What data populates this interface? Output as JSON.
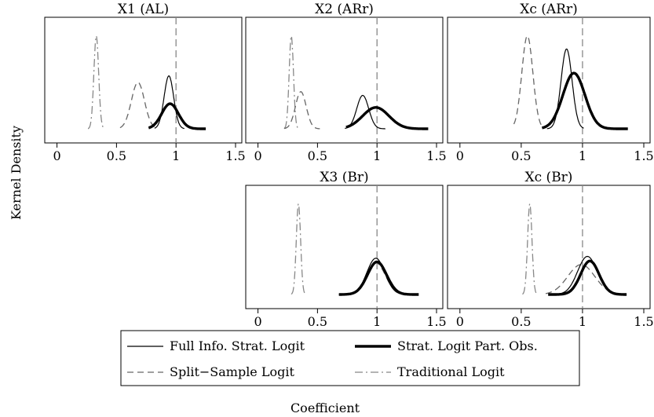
{
  "chart_data": {
    "type": "line",
    "ylabel": "Kernel Density",
    "xlabel": "Coefficient",
    "xlim": [
      -0.05,
      1.5
    ],
    "x_ticks": [
      {
        "value": 0,
        "label": "0"
      },
      {
        "value": 0.5,
        "label": "0.5"
      },
      {
        "value": 1,
        "label": "1"
      },
      {
        "value": 1.5,
        "label": "1.5"
      }
    ],
    "reference_line_x": 1,
    "grid": false,
    "legend_position": "bottom-center",
    "legend": [
      {
        "key": "full",
        "label": "Full Info. Strat. Logit",
        "style": "solid",
        "color": "#000000",
        "width": 1.2
      },
      {
        "key": "strat",
        "label": "Strat. Logit Part. Obs.",
        "style": "solid",
        "color": "#000000",
        "width": 3.4
      },
      {
        "key": "split",
        "label": "Split−Sample Logit",
        "style": "dashed",
        "color": "#666666",
        "width": 1.3
      },
      {
        "key": "trad",
        "label": "Traditional Logit",
        "style": "dashdot",
        "color": "#888888",
        "width": 1.3
      }
    ],
    "panels": [
      {
        "id": "x1-al",
        "title": "X1 (AL)",
        "ylim": [
          0,
          1.1
        ],
        "series": [
          {
            "key": "trad",
            "mean": 0.33,
            "sd": 0.02,
            "height": 1.0,
            "range": [
              0.26,
              0.4
            ]
          },
          {
            "key": "split",
            "mean": 0.68,
            "sd": 0.055,
            "height": 0.5,
            "range": [
              0.53,
              0.84
            ]
          },
          {
            "key": "full",
            "mean": 0.94,
            "sd": 0.04,
            "height": 0.57,
            "range": [
              0.82,
              1.07
            ]
          },
          {
            "key": "strat",
            "mean": 0.95,
            "sd": 0.07,
            "height": 0.27,
            "range": [
              0.77,
              1.25
            ]
          }
        ]
      },
      {
        "id": "x2-arr",
        "title": "X2 (ARr)",
        "ylim": [
          0,
          1.1
        ],
        "series": [
          {
            "key": "trad",
            "mean": 0.28,
            "sd": 0.018,
            "height": 1.0,
            "range": [
              0.22,
              0.34
            ]
          },
          {
            "key": "split",
            "mean": 0.36,
            "sd": 0.045,
            "height": 0.4,
            "range": [
              0.22,
              0.52
            ]
          },
          {
            "key": "full",
            "mean": 0.88,
            "sd": 0.05,
            "height": 0.36,
            "range": [
              0.73,
              1.07
            ]
          },
          {
            "key": "strat",
            "mean": 0.99,
            "sd": 0.11,
            "height": 0.23,
            "range": [
              0.74,
              1.43
            ]
          }
        ]
      },
      {
        "id": "xc-arr",
        "title": "Xc (ARr)",
        "ylim": [
          0,
          1.1
        ],
        "series": [
          {
            "key": "split",
            "mean": 0.55,
            "sd": 0.045,
            "height": 1.0,
            "range": [
              0.44,
              0.68
            ]
          },
          {
            "key": "full",
            "mean": 0.87,
            "sd": 0.045,
            "height": 0.86,
            "range": [
              0.71,
              1.01
            ]
          },
          {
            "key": "strat",
            "mean": 0.93,
            "sd": 0.09,
            "height": 0.6,
            "range": [
              0.67,
              1.37
            ]
          }
        ]
      },
      {
        "id": "x3-br",
        "title": "X3 (Br)",
        "ylim": [
          0,
          1.1
        ],
        "series": [
          {
            "key": "trad",
            "mean": 0.34,
            "sd": 0.018,
            "height": 1.0,
            "range": [
              0.28,
              0.4
            ]
          },
          {
            "key": "split",
            "mean": 0.99,
            "sd": 0.08,
            "height": 0.35,
            "range": [
              0.68,
              1.3
            ]
          },
          {
            "key": "full",
            "mean": 0.99,
            "sd": 0.075,
            "height": 0.4,
            "range": [
              0.68,
              1.33
            ]
          },
          {
            "key": "strat",
            "mean": 1.0,
            "sd": 0.08,
            "height": 0.36,
            "range": [
              0.68,
              1.35
            ]
          }
        ]
      },
      {
        "id": "xc-br",
        "title": "Xc (Br)",
        "ylim": [
          0,
          1.1
        ],
        "series": [
          {
            "key": "trad",
            "mean": 0.57,
            "sd": 0.018,
            "height": 1.0,
            "range": [
              0.51,
              0.63
            ]
          },
          {
            "key": "split",
            "mean": 0.99,
            "sd": 0.11,
            "height": 0.33,
            "range": [
              0.7,
              1.32
            ]
          },
          {
            "key": "full",
            "mean": 1.04,
            "sd": 0.08,
            "height": 0.42,
            "range": [
              0.76,
              1.33
            ]
          },
          {
            "key": "strat",
            "mean": 1.06,
            "sd": 0.075,
            "height": 0.37,
            "range": [
              0.72,
              1.36
            ]
          }
        ]
      }
    ]
  }
}
